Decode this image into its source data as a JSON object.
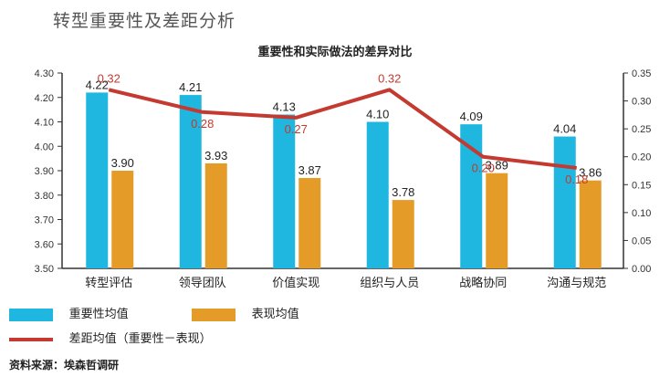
{
  "page": {
    "heading": "转型重要性及差距分析",
    "source": "资料来源：埃森哲调研"
  },
  "colors": {
    "importance": "#1fb6e0",
    "performance": "#e59b27",
    "gap": "#c43a31",
    "axis": "#333333"
  },
  "legend": {
    "importance": "重要性均值",
    "performance": "表现均值",
    "gap": "差距均值（重要性－表现）"
  },
  "chart_data": {
    "type": "bar",
    "title": "重要性和实际做法的差异对比",
    "categories": [
      "转型评估",
      "领导团队",
      "价值实现",
      "组织与人员",
      "战略协同",
      "沟通与规范"
    ],
    "series": [
      {
        "name": "重要性均值",
        "type": "bar",
        "axis": "left",
        "values": [
          4.22,
          4.21,
          4.13,
          4.1,
          4.09,
          4.04
        ]
      },
      {
        "name": "表现均值",
        "type": "bar",
        "axis": "left",
        "values": [
          3.9,
          3.93,
          3.87,
          3.78,
          3.89,
          3.86
        ]
      },
      {
        "name": "差距均值（重要性－表现）",
        "type": "line",
        "axis": "right",
        "values": [
          0.32,
          0.28,
          0.27,
          0.32,
          0.2,
          0.18
        ]
      }
    ],
    "y_left": {
      "range": [
        3.5,
        4.3
      ],
      "ticks": [
        "4.30",
        "4.20",
        "4.10",
        "4.00",
        "3.90",
        "3.80",
        "3.70",
        "3.60",
        "3.50"
      ]
    },
    "y_right": {
      "range": [
        0.0,
        0.35
      ],
      "ticks": [
        "0.35",
        "0.30",
        "0.25",
        "0.20",
        "0.15",
        "0.10",
        "0.05",
        "0.00"
      ]
    },
    "bar_labels_importance": [
      "4.22",
      "4.21",
      "4.13",
      "4.10",
      "4.09",
      "4.04"
    ],
    "bar_labels_performance": [
      "3.90",
      "3.93",
      "3.87",
      "3.78",
      "3.89",
      "3.86"
    ],
    "line_labels": [
      "0.32",
      "0.28",
      "0.27",
      "0.32",
      "0.20",
      "0.18"
    ],
    "grid": false,
    "legend_position": "bottom-left"
  }
}
